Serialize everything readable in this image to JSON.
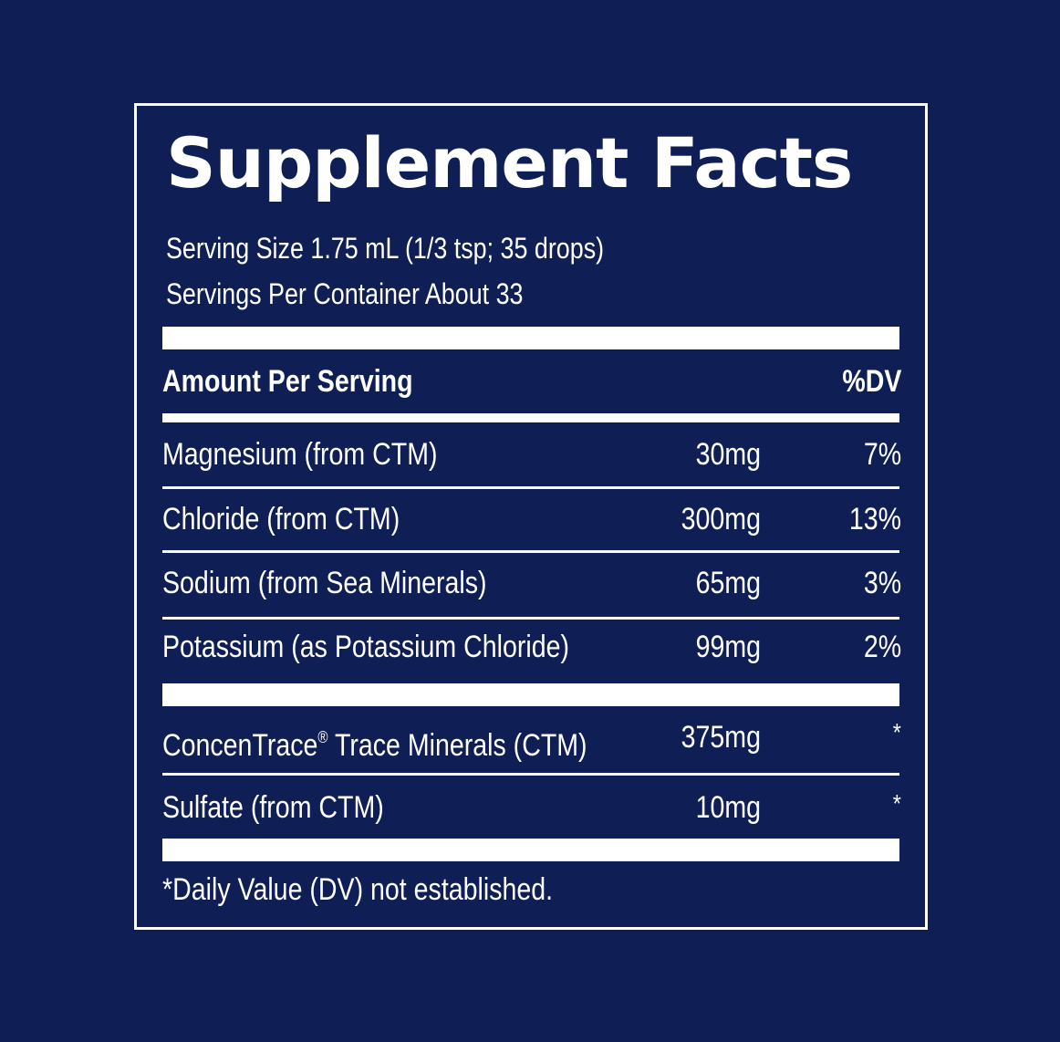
{
  "label": {
    "title": "Supplement Facts",
    "serving_size": "Serving Size 1.75 mL (1/3 tsp; 35 drops)",
    "servings_per_container": "Servings Per Container About 33",
    "header": {
      "amount": "Amount Per Serving",
      "dv": "%DV"
    },
    "rows": [
      {
        "name": "Magnesium (from CTM)",
        "amount": "30mg",
        "dv": "7%"
      },
      {
        "name": "Chloride (from CTM)",
        "amount": "300mg",
        "dv": "13%"
      },
      {
        "name": "Sodium (from Sea Minerals)",
        "amount": "65mg",
        "dv": "3%"
      },
      {
        "name": "Potassium (as Potassium Chloride)",
        "amount": "99mg",
        "dv": "2%"
      }
    ],
    "rows2": [
      {
        "name_pre": "ConcenTrace",
        "registered": "®",
        "name_post": " Trace Minerals (CTM)",
        "amount": "375mg",
        "dv": "*"
      },
      {
        "name": "Sulfate (from CTM)",
        "amount": "10mg",
        "dv": "*"
      }
    ],
    "footnote": "*Daily Value (DV) not established."
  },
  "colors": {
    "background": "#0f1f55",
    "foreground": "#ffffff"
  }
}
